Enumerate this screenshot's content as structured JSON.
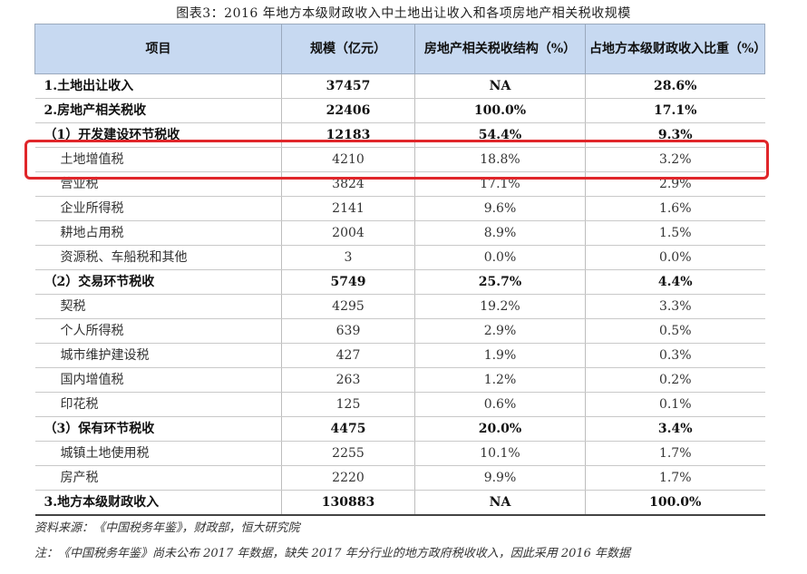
{
  "caption": "图表3：2016 年地方本级财政收入中土地出让收入和各项房地产相关税收规模",
  "headers": [
    "项目",
    "规模（亿元）",
    "房地产相关税收结构（%）",
    "占地方本级财政收入比重（%）"
  ],
  "rows": [
    {
      "name": "1.土地出让收入",
      "scale": "37457",
      "structure": "NA",
      "share": "28.6%"
    },
    {
      "name": "2.房地产相关税收",
      "scale": "22406",
      "structure": "100.0%",
      "share": "17.1%"
    },
    {
      "name": "（1）开发建设环节税收",
      "scale": "12183",
      "structure": "54.4%",
      "share": "9.3%"
    },
    {
      "name": "土地增值税",
      "scale": "4210",
      "structure": "18.8%",
      "share": "3.2%"
    },
    {
      "name": "营业税",
      "scale": "3824",
      "structure": "17.1%",
      "share": "2.9%"
    },
    {
      "name": "企业所得税",
      "scale": "2141",
      "structure": "9.6%",
      "share": "1.6%"
    },
    {
      "name": "耕地占用税",
      "scale": "2004",
      "structure": "8.9%",
      "share": "1.5%"
    },
    {
      "name": "资源税、车船税和其他",
      "scale": "3",
      "structure": "0.0%",
      "share": "0.0%"
    },
    {
      "name": "（2）交易环节税收",
      "scale": "5749",
      "structure": "25.7%",
      "share": "4.4%"
    },
    {
      "name": "契税",
      "scale": "4295",
      "structure": "19.2%",
      "share": "3.3%"
    },
    {
      "name": "个人所得税",
      "scale": "639",
      "structure": "2.9%",
      "share": "0.5%"
    },
    {
      "name": "城市维护建设税",
      "scale": "427",
      "structure": "1.9%",
      "share": "0.3%"
    },
    {
      "name": "国内增值税",
      "scale": "263",
      "structure": "1.2%",
      "share": "0.2%"
    },
    {
      "name": "印花税",
      "scale": "125",
      "structure": "0.6%",
      "share": "0.1%"
    },
    {
      "name": "（3）保有环节税收",
      "scale": "4475",
      "structure": "20.0%",
      "share": "3.4%"
    },
    {
      "name": "城镇土地使用税",
      "scale": "2255",
      "structure": "10.1%",
      "share": "1.7%"
    },
    {
      "name": "房产税",
      "scale": "2220",
      "structure": "9.9%",
      "share": "1.7%"
    },
    {
      "name": "3.地方本级财政收入",
      "scale": "130883",
      "structure": "NA",
      "share": "100.0%"
    }
  ],
  "source_note": "资料来源：《中国税务年鉴》，财政部，恒大研究院",
  "footnote": "注：《中国税务年鉴》尚未公布 2017 年数据，缺失 2017 年分行业的地方政府税收收入，因此采用 2016 年数据"
}
